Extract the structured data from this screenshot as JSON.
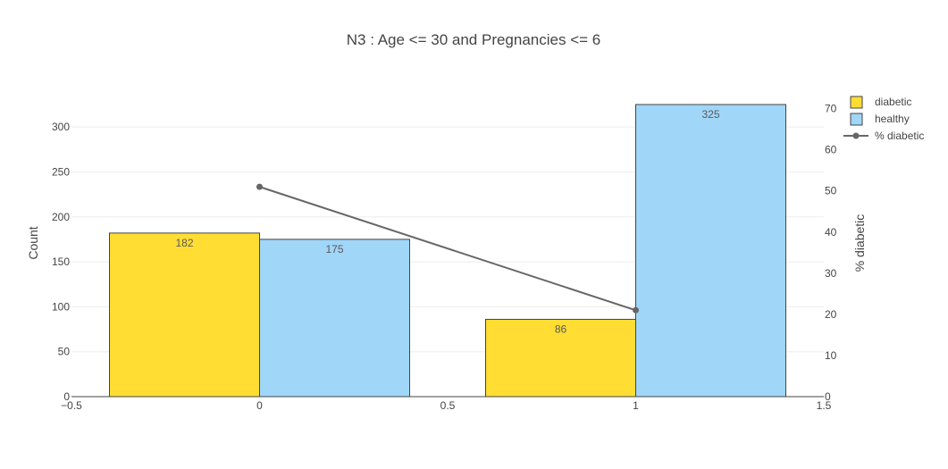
{
  "chart_data": {
    "type": "bar",
    "title": "N3 : Age <= 30 and Pregnancies <= 6",
    "xlabel": "",
    "ylabel": "Count",
    "y2label": "% diabetic",
    "x_ticks": [
      "−0.5",
      "0",
      "0.5",
      "1",
      "1.5"
    ],
    "x_tick_values": [
      -0.5,
      0,
      0.5,
      1,
      1.5
    ],
    "xlim": [
      -0.5,
      1.5
    ],
    "ylim": [
      0,
      325
    ],
    "y_ticks": [
      0,
      50,
      100,
      150,
      200,
      250,
      300
    ],
    "y2lim": [
      0,
      71
    ],
    "y2_ticks": [
      0,
      10,
      20,
      30,
      40,
      50,
      60,
      70
    ],
    "grid": true,
    "legend_position": "top-right",
    "bar_series": [
      {
        "name": "diabetic",
        "color": "#FFDD33",
        "x": [
          0,
          1
        ],
        "offset": "left",
        "values": [
          182,
          86
        ],
        "labels": [
          "182",
          "86"
        ]
      },
      {
        "name": "healthy",
        "color": "#A0D6F8",
        "x": [
          0,
          1
        ],
        "offset": "right",
        "values": [
          175,
          325
        ],
        "labels": [
          "175",
          "325"
        ]
      }
    ],
    "line_series": {
      "name": "% diabetic",
      "color": "#666666",
      "x": [
        0,
        1
      ],
      "values": [
        51,
        21
      ],
      "axis": "y2"
    }
  }
}
